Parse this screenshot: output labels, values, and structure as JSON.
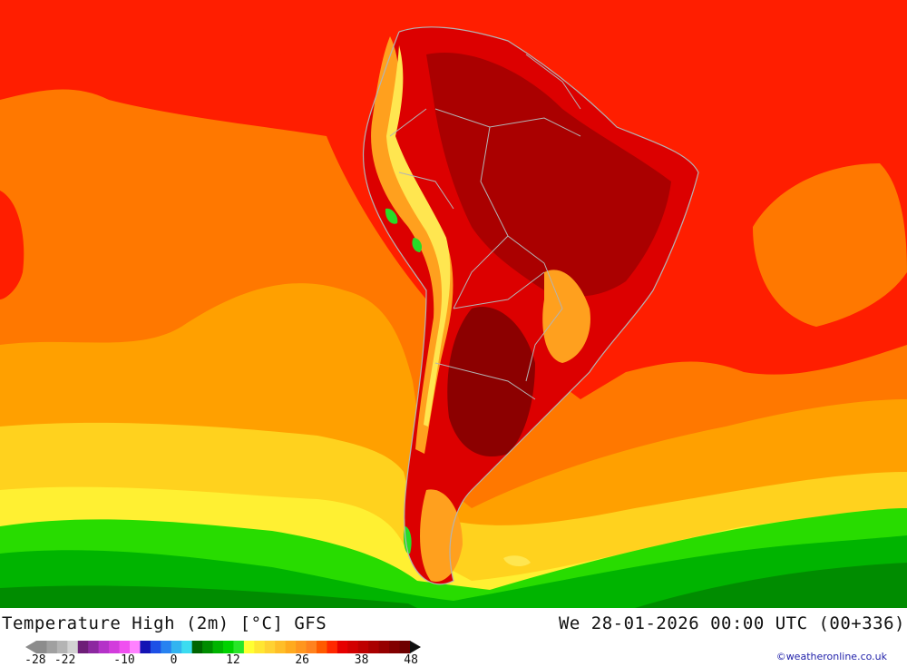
{
  "title_left": "Temperature High (2m) [°C] GFS",
  "title_right": "We 28-01-2026 00:00 UTC (00+336)",
  "credit": "©weatheronline.co.uk",
  "legend": {
    "colors": [
      "#8c8c8c",
      "#a0a0a0",
      "#b4b4b4",
      "#d2d2d2",
      "#6e1e78",
      "#8c28a0",
      "#b432c8",
      "#d23cdc",
      "#f050f0",
      "#ff82ff",
      "#1414b4",
      "#1e50e6",
      "#2882f0",
      "#32b4f0",
      "#3cdcf0",
      "#006400",
      "#008c00",
      "#00b400",
      "#00d200",
      "#28e628",
      "#ffff32",
      "#ffe632",
      "#ffd232",
      "#ffbe28",
      "#ffaa1e",
      "#ff961e",
      "#ff821e",
      "#ff5a00",
      "#ff2800",
      "#e60000",
      "#d20000",
      "#be0000",
      "#aa0000",
      "#960000",
      "#820000",
      "#6e0000"
    ],
    "ticks": [
      {
        "label": "-28",
        "value": -28
      },
      {
        "label": "-22",
        "value": -22
      },
      {
        "label": "-10",
        "value": -10
      },
      {
        "label": "0",
        "value": 0
      },
      {
        "label": "12",
        "value": 12
      },
      {
        "label": "26",
        "value": 26
      },
      {
        "label": "38",
        "value": 38
      },
      {
        "label": "48",
        "value": 48
      }
    ],
    "min": -30,
    "max": 50
  },
  "palette": {
    "ocean_red": "#ff1e00",
    "ocean_orange": "#ff7800",
    "ocean_amber": "#ffa000",
    "ocean_yellow": "#ffd21e",
    "ocean_yellow2": "#fff032",
    "green_light": "#28dc00",
    "green_mid": "#00b400",
    "green_dark": "#008c00",
    "land_red": "#dc0000",
    "land_dark": "#aa0000",
    "land_darkest": "#8c0000",
    "andes_orange": "#ffa01e",
    "andes_yellow": "#ffe650",
    "andes_green": "#28dc28",
    "border": "#b4b4b4"
  }
}
